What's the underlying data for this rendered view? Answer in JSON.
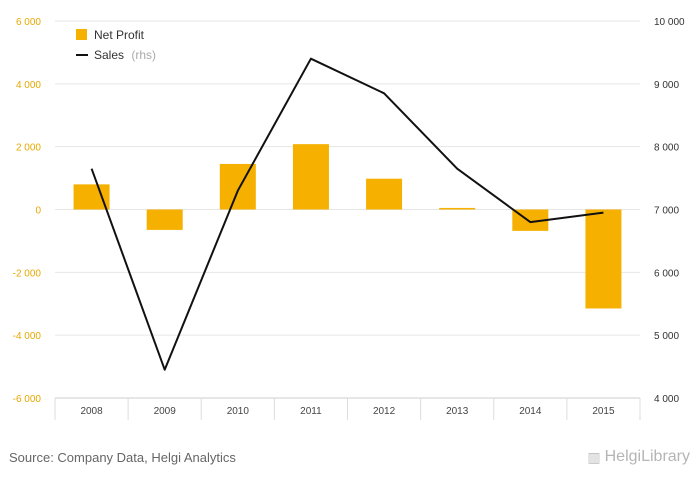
{
  "chart_data": {
    "type": "bar",
    "categories": [
      "2008",
      "2009",
      "2010",
      "2011",
      "2012",
      "2013",
      "2014",
      "2015"
    ],
    "series": [
      {
        "name": "Net Profit",
        "type": "bar",
        "axis": "left",
        "values": [
          800,
          -650,
          1450,
          2080,
          980,
          50,
          -680,
          -3150
        ]
      },
      {
        "name": "Sales",
        "type": "line",
        "axis": "right",
        "values": [
          7650,
          4450,
          7300,
          9400,
          8850,
          7650,
          6800,
          6950
        ]
      }
    ],
    "legend": [
      {
        "label": "Net Profit",
        "note": ""
      },
      {
        "label": "Sales",
        "note": "(rhs)"
      }
    ],
    "y_left": {
      "ylim": [
        -6000,
        6000
      ],
      "ticks": [
        6000,
        4000,
        2000,
        0,
        -2000,
        -4000,
        -6000
      ],
      "tick_labels": [
        "6 000",
        "4 000",
        "2 000",
        "0",
        "-2 000",
        "-4 000",
        "-6 000"
      ]
    },
    "y_right": {
      "ylim": [
        4000,
        10000
      ],
      "ticks": [
        10000,
        9000,
        8000,
        7000,
        6000,
        5000,
        4000
      ],
      "tick_labels": [
        "10 000",
        "9 000",
        "8 000",
        "7 000",
        "6 000",
        "5 000",
        "4 000"
      ]
    },
    "legend_position": "top-left",
    "grid": true,
    "colors": {
      "bar": "#f5b000",
      "line": "#111111",
      "grid": "#e6e6e6",
      "left_ticks": "#e8a800"
    }
  },
  "footer": {
    "source": "Source: Company Data, Helgi Analytics",
    "brand": "HelgiLibrary"
  }
}
